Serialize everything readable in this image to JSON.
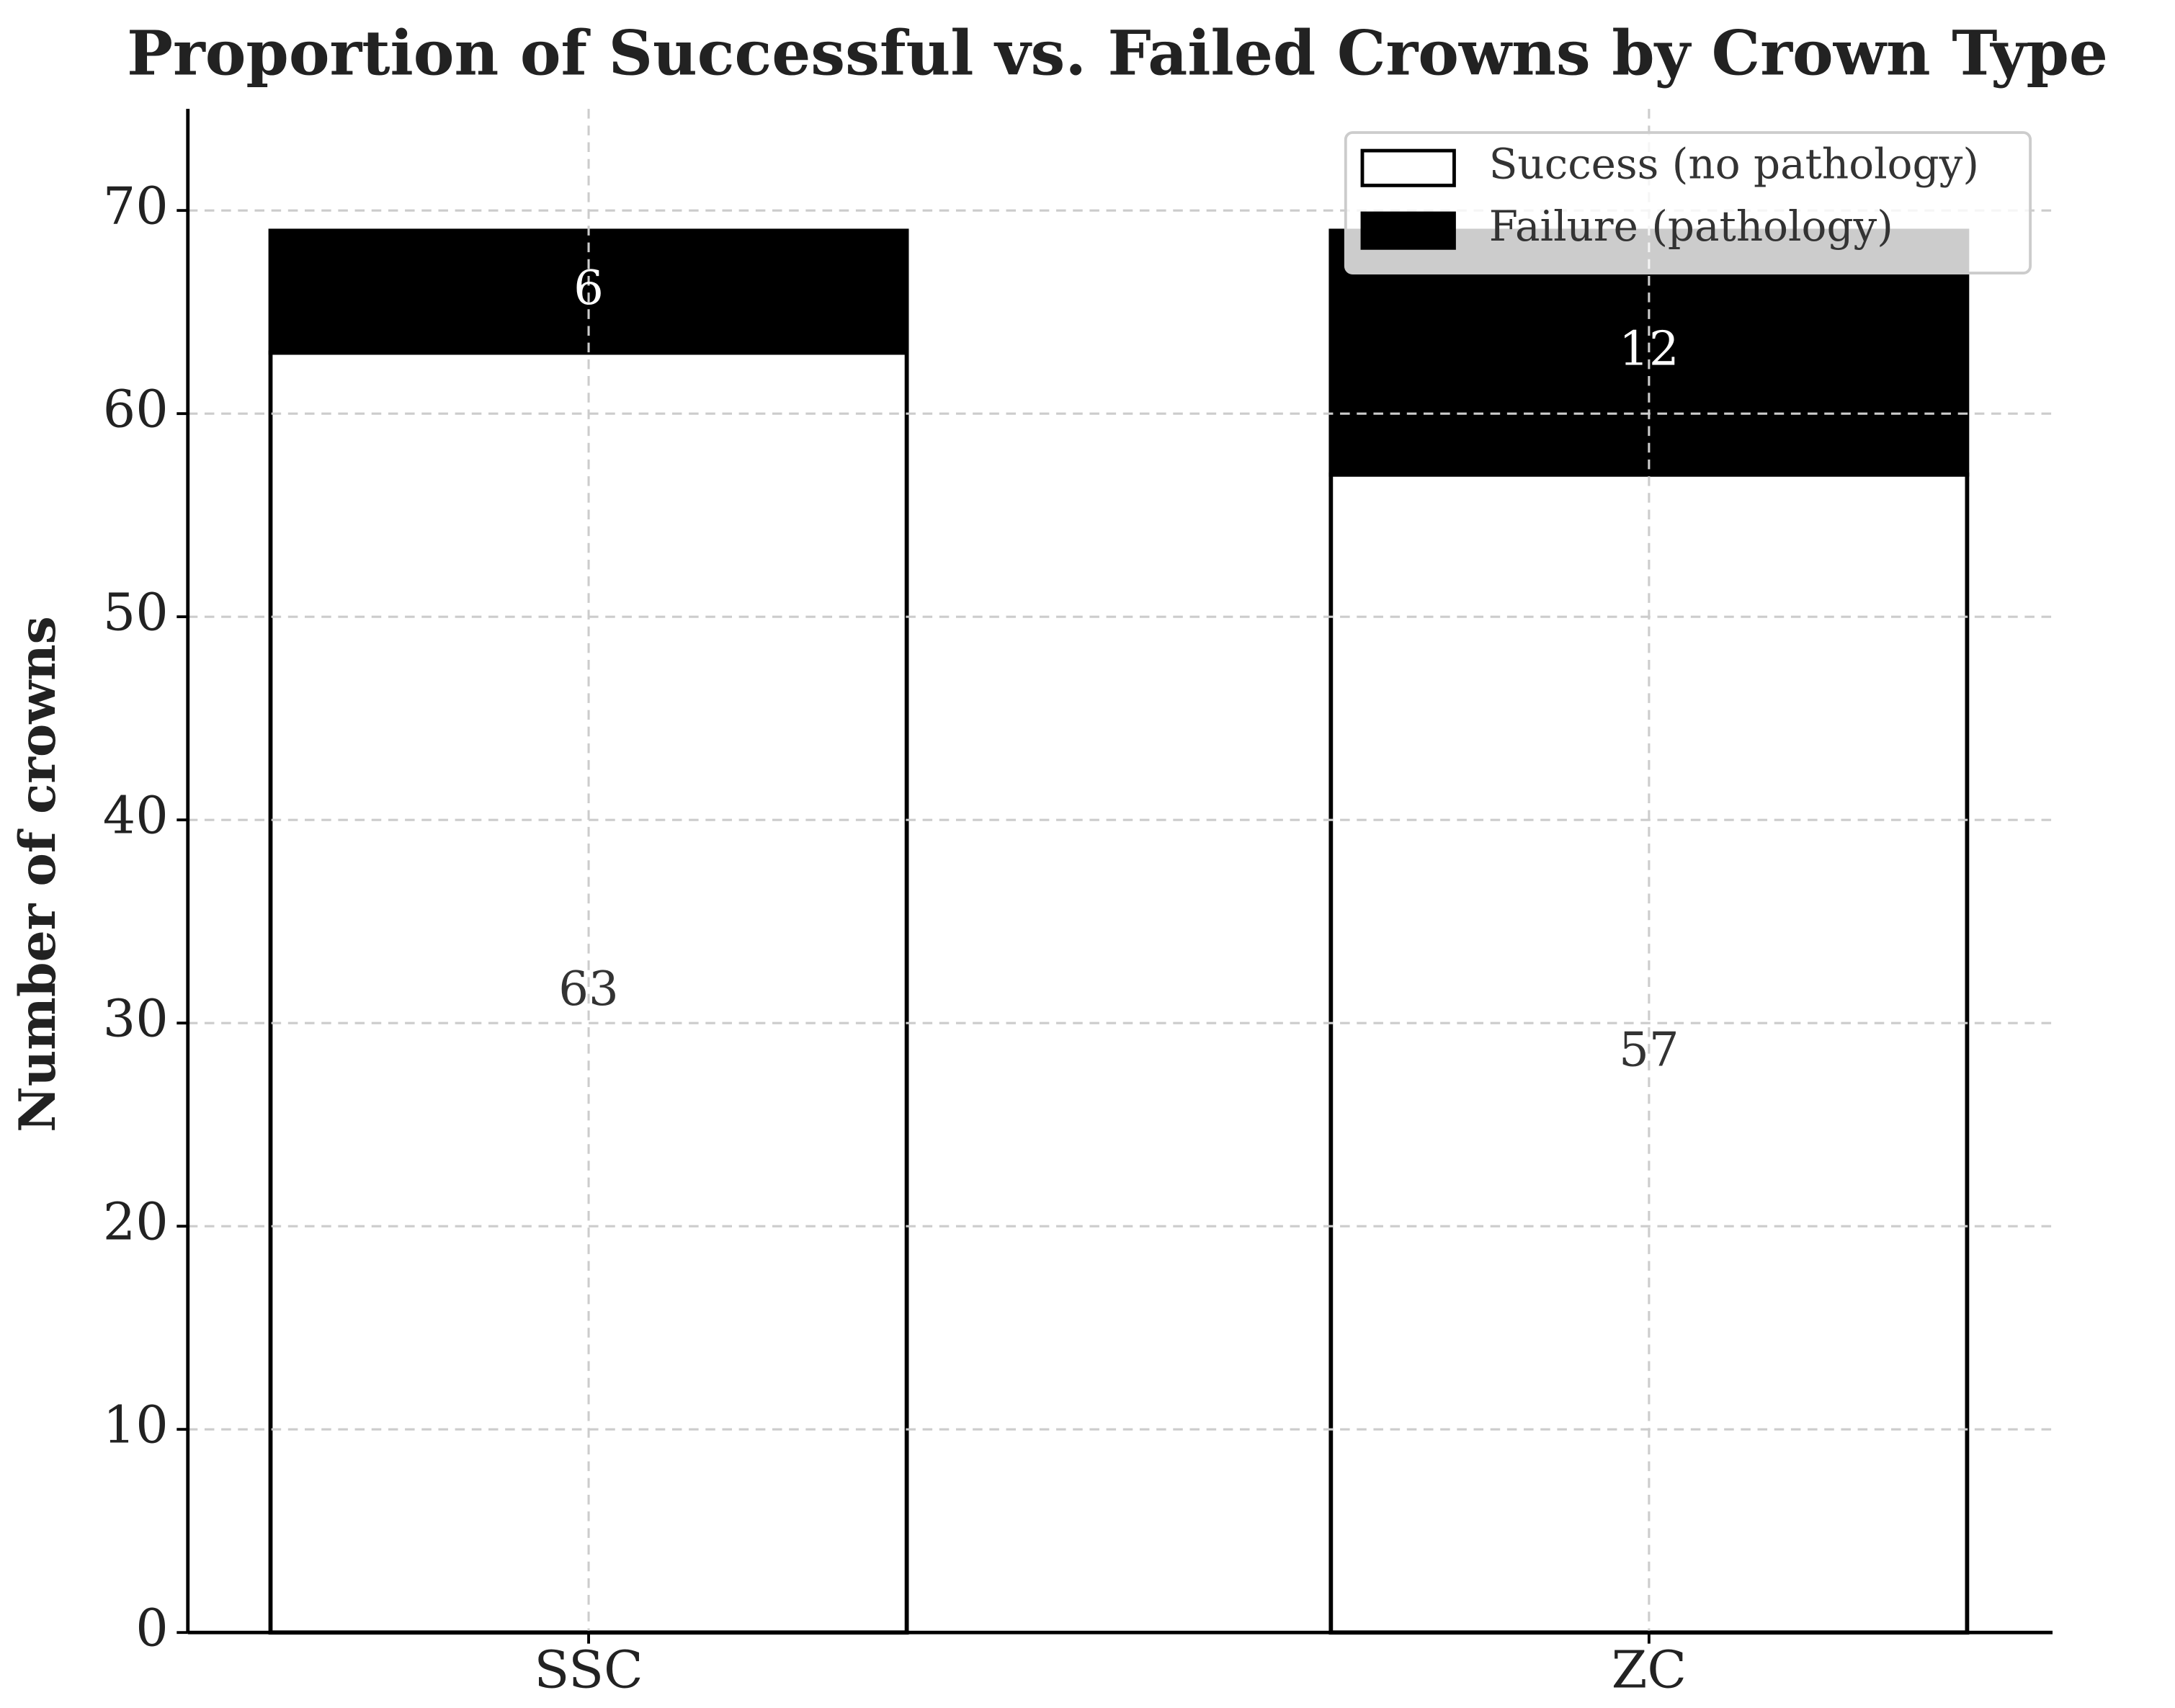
{
  "chart_data": {
    "type": "stacked_bar",
    "title": "Proportion of Successful vs. Failed Crowns by Crown Type",
    "ylabel": "Number of crowns",
    "categories": [
      "SSC",
      "ZC"
    ],
    "series": [
      {
        "name": "Success (no pathology)",
        "color": "#ffffff",
        "edgecolor": "#000000",
        "label_color": "#333333",
        "values": [
          63,
          57
        ]
      },
      {
        "name": "Failure (pathology)",
        "color": "#000000",
        "edgecolor": "#000000",
        "label_color": "#ffffff",
        "values": [
          6,
          12
        ]
      }
    ],
    "ylim": [
      0,
      75
    ],
    "yticks": [
      0,
      10,
      20,
      30,
      40,
      50,
      60,
      70
    ],
    "grid": true,
    "legend": "upper right"
  }
}
